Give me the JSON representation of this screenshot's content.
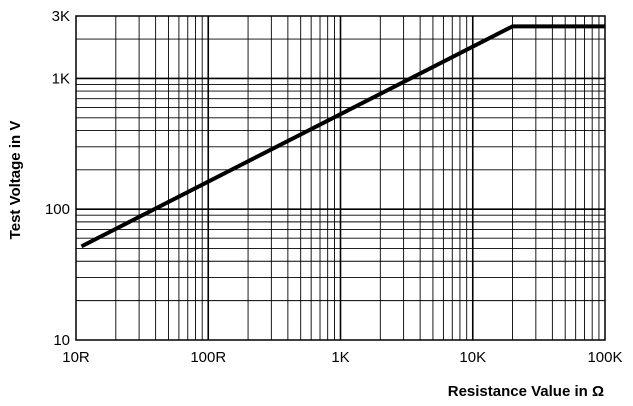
{
  "chart_data": {
    "type": "line",
    "xscale": "log",
    "yscale": "log",
    "xlim": [
      10,
      100000
    ],
    "ylim": [
      10,
      3000
    ],
    "xlabel": "Resistance Value in Ω",
    "ylabel": "Test Voltage in V",
    "grid": true,
    "xticks": [
      {
        "value": 10,
        "label": "10R"
      },
      {
        "value": 100,
        "label": "100R"
      },
      {
        "value": 1000,
        "label": "1K"
      },
      {
        "value": 10000,
        "label": "10K"
      },
      {
        "value": 100000,
        "label": "100K"
      }
    ],
    "yticks": [
      {
        "value": 10,
        "label": "10"
      },
      {
        "value": 100,
        "label": "100"
      },
      {
        "value": 1000,
        "label": "1K"
      },
      {
        "value": 3000,
        "label": "3K"
      }
    ],
    "series": [
      {
        "color": "#000000",
        "points": [
          {
            "x": 11,
            "y": 52
          },
          {
            "x": 20000,
            "y": 2500
          },
          {
            "x": 100000,
            "y": 2500
          }
        ]
      }
    ]
  }
}
